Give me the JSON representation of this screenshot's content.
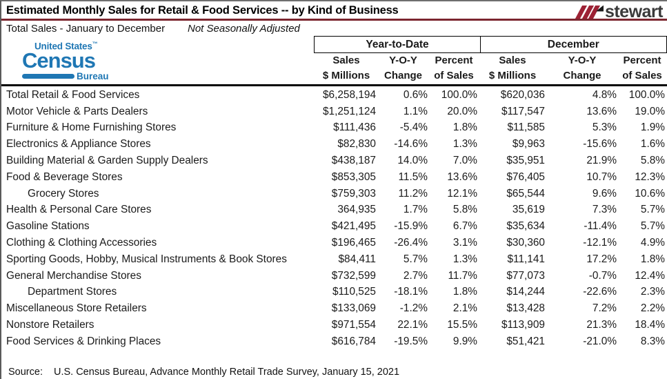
{
  "header": {
    "title": "Estimated Monthly Sales for Retail & Food Services -- by Kind of Business",
    "subtitle": "Total Sales - January to December",
    "subtitle_note": "Not Seasonally Adjusted"
  },
  "stewart_logo": {
    "text": "stewart"
  },
  "census_logo": {
    "line1": "United States",
    "trademark": "™",
    "line2": "Census",
    "line3": "Bureau"
  },
  "colors": {
    "title_rule": "#7B262F",
    "stewart_red": "#9D2235",
    "census_blue": "#1F77B4",
    "text": "#1A1A1A"
  },
  "table": {
    "group_headers": [
      "Year-to-Date",
      "December"
    ],
    "subheaders": [
      {
        "l1": "Sales",
        "l2": "$ Millions"
      },
      {
        "l1": "Y-O-Y",
        "l2": "Change"
      },
      {
        "l1": "Percent",
        "l2": "of Sales"
      },
      {
        "l1": "Sales",
        "l2": "$ Millions"
      },
      {
        "l1": "Y-O-Y",
        "l2": "Change"
      },
      {
        "l1": "Percent",
        "l2": "of Sales"
      }
    ]
  },
  "chart_data": {
    "type": "table",
    "title": "Estimated Monthly Sales for Retail & Food Services -- by Kind of Business",
    "subtitle": "Total Sales - January to December, Not Seasonally Adjusted",
    "column_groups": [
      "Year-to-Date",
      "December"
    ],
    "columns": [
      "Kind of Business",
      "Sales $ Millions (Year-to-Date)",
      "Y-O-Y Change (Year-to-Date)",
      "Percent of Sales (Year-to-Date)",
      "Sales $ Millions (December)",
      "Y-O-Y Change (December)",
      "Percent of Sales (December)"
    ],
    "rows": [
      {
        "label": "Total Retail & Food Services",
        "indent": false,
        "values": [
          "$6,258,194",
          "0.6%",
          "100.0%",
          "$620,036",
          "4.8%",
          "100.0%"
        ]
      },
      {
        "label": "Motor Vehicle & Parts Dealers",
        "indent": false,
        "values": [
          "$1,251,124",
          "1.1%",
          "20.0%",
          "$117,547",
          "13.6%",
          "19.0%"
        ]
      },
      {
        "label": "Furniture & Home Furnishing Stores",
        "indent": false,
        "values": [
          "$111,436",
          "-5.4%",
          "1.8%",
          "$11,585",
          "5.3%",
          "1.9%"
        ]
      },
      {
        "label": "Electronics & Appliance Stores",
        "indent": false,
        "values": [
          "$82,830",
          "-14.6%",
          "1.3%",
          "$9,963",
          "-15.6%",
          "1.6%"
        ]
      },
      {
        "label": "Building Material & Garden Supply Dealers",
        "indent": false,
        "values": [
          "$438,187",
          "14.0%",
          "7.0%",
          "$35,951",
          "21.9%",
          "5.8%"
        ]
      },
      {
        "label": "Food & Beverage Stores",
        "indent": false,
        "values": [
          "$853,305",
          "11.5%",
          "13.6%",
          "$76,405",
          "10.7%",
          "12.3%"
        ]
      },
      {
        "label": "Grocery Stores",
        "indent": true,
        "values": [
          "$759,303",
          "11.2%",
          "12.1%",
          "$65,544",
          "9.6%",
          "10.6%"
        ]
      },
      {
        "label": "Health & Personal Care Stores",
        "indent": false,
        "values": [
          "364,935",
          "1.7%",
          "5.8%",
          "35,619",
          "7.3%",
          "5.7%"
        ]
      },
      {
        "label": "Gasoline Stations",
        "indent": false,
        "values": [
          "$421,495",
          "-15.9%",
          "6.7%",
          "$35,634",
          "-11.4%",
          "5.7%"
        ]
      },
      {
        "label": "Clothing & Clothing Accessories",
        "indent": false,
        "values": [
          "$196,465",
          "-26.4%",
          "3.1%",
          "$30,360",
          "-12.1%",
          "4.9%"
        ]
      },
      {
        "label": "Sporting Goods, Hobby, Musical Instruments & Book Stores",
        "indent": false,
        "values": [
          "$84,411",
          "5.7%",
          "1.3%",
          "$11,141",
          "17.2%",
          "1.8%"
        ]
      },
      {
        "label": "General Merchandise Stores",
        "indent": false,
        "values": [
          "$732,599",
          "2.7%",
          "11.7%",
          "$77,073",
          "-0.7%",
          "12.4%"
        ]
      },
      {
        "label": "Department Stores",
        "indent": true,
        "values": [
          "$110,525",
          "-18.1%",
          "1.8%",
          "$14,244",
          "-22.6%",
          "2.3%"
        ]
      },
      {
        "label": "Miscellaneous Store Retailers",
        "indent": false,
        "values": [
          "$133,069",
          "-1.2%",
          "2.1%",
          "$13,428",
          "7.2%",
          "2.2%"
        ]
      },
      {
        "label": "Nonstore Retailers",
        "indent": false,
        "values": [
          "$971,554",
          "22.1%",
          "15.5%",
          "$113,909",
          "21.3%",
          "18.4%"
        ]
      },
      {
        "label": "Food Services & Drinking Places",
        "indent": false,
        "values": [
          "$616,784",
          "-19.5%",
          "9.9%",
          "$51,421",
          "-21.0%",
          "8.3%"
        ]
      }
    ]
  },
  "footer": {
    "source_label": "Source:",
    "source_text": "U.S. Census Bureau, Advance Monthly Retail Trade Survey, January 15, 2021"
  }
}
